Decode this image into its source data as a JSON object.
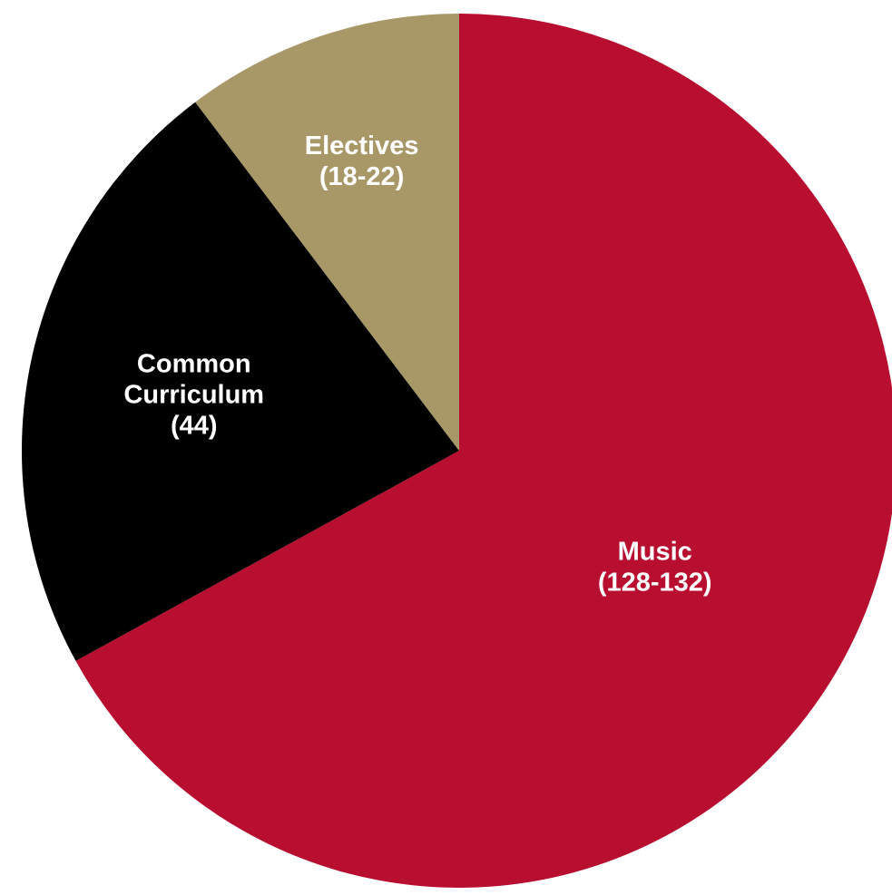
{
  "chart_data": {
    "type": "pie",
    "start": "top",
    "direction": "clockwise",
    "slices": [
      {
        "id": "music",
        "label_lines": [
          "Music",
          "(128-132)"
        ],
        "value": 130,
        "color": "#b80e30"
      },
      {
        "id": "common-curriculum",
        "label_lines": [
          "Common",
          "Curriculum",
          "(44)"
        ],
        "value": 44,
        "color": "#000000"
      },
      {
        "id": "electives",
        "label_lines": [
          "Electives",
          "(18-22)"
        ],
        "value": 20,
        "color": "#a89868"
      }
    ]
  }
}
